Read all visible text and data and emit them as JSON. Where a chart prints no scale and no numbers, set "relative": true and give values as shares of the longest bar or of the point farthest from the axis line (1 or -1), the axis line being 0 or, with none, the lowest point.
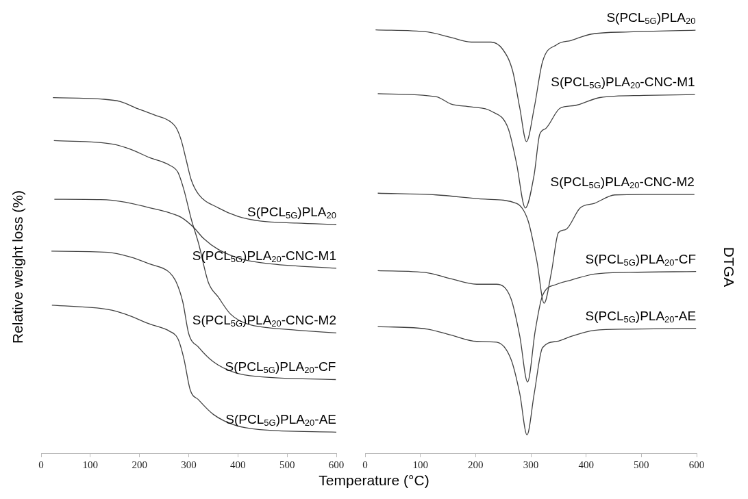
{
  "chart_data": [
    {
      "type": "line",
      "relative": true,
      "ylabel": "Relative weight loss (%)",
      "xlabel": "Temperature (°C)",
      "xlim": [
        0,
        600
      ],
      "xticks": [
        0,
        100,
        200,
        300,
        400,
        500,
        600
      ],
      "grid": false,
      "legend": false,
      "series": [
        {
          "name": "S(PCL$_{5G}$)PLA$_{20}$",
          "color": "#404040",
          "x": [
            24,
            121,
            161,
            196,
            231,
            261,
            275,
            285,
            295,
            305,
            320,
            360,
            400,
            445,
            519,
            600
          ],
          "values": [
            1.0,
            0.996,
            0.989,
            0.969,
            0.951,
            0.934,
            0.914,
            0.879,
            0.824,
            0.769,
            0.728,
            0.69,
            0.666,
            0.653,
            0.647,
            0.643
          ]
        },
        {
          "name": "S(PCL$_{5G}$)PLA$_{20}$-CNC-M1",
          "color": "#404040",
          "x": [
            27,
            121,
            171,
            221,
            261,
            285,
            310,
            330,
            360,
            410,
            469,
            600
          ],
          "values": [
            0.714,
            0.713,
            0.706,
            0.69,
            0.676,
            0.663,
            0.635,
            0.604,
            0.573,
            0.545,
            0.532,
            0.52
          ]
        },
        {
          "name": "S(PCL$_{5G}$)PLA$_{20}$-CNC-M2",
          "color": "#404040",
          "x": [
            26,
            146,
            181,
            221,
            261,
            278,
            290,
            305,
            320,
            340,
            360,
            385,
            420,
            460,
            519,
            600
          ],
          "values": [
            0.879,
            0.869,
            0.855,
            0.831,
            0.81,
            0.79,
            0.742,
            0.659,
            0.59,
            0.48,
            0.439,
            0.391,
            0.363,
            0.353,
            0.346,
            0.338
          ]
        },
        {
          "name": "S(PCL$_{5G}$)PLA$_{20}$-CF",
          "color": "#404040",
          "x": [
            21,
            136,
            181,
            221,
            261,
            275,
            288,
            300,
            320,
            350,
            395,
            445,
            599
          ],
          "values": [
            0.568,
            0.565,
            0.552,
            0.532,
            0.508,
            0.48,
            0.425,
            0.336,
            0.298,
            0.257,
            0.226,
            0.215,
            0.207
          ]
        },
        {
          "name": "S(PCL$_{5G}$)PLA$_{20}$-AE",
          "color": "#404040",
          "x": [
            22,
            136,
            171,
            221,
            261,
            278,
            290,
            303,
            320,
            350,
            395,
            445,
            600
          ],
          "values": [
            0.416,
            0.404,
            0.391,
            0.363,
            0.343,
            0.322,
            0.267,
            0.178,
            0.15,
            0.109,
            0.078,
            0.066,
            0.059
          ]
        }
      ]
    },
    {
      "type": "line",
      "relative": true,
      "ylabel": "DTGA",
      "xlim": [
        0,
        600
      ],
      "xticks": [
        0,
        100,
        200,
        300,
        400,
        500,
        600
      ],
      "grid": false,
      "legend": false,
      "series": [
        {
          "name": "S(PCL$_{5G}$)PLA$_{20}$",
          "color": "#404040",
          "x": [
            19,
            113,
            155,
            192,
            228,
            249,
            267,
            280,
            292,
            306,
            321,
            347,
            373,
            410,
            478,
            598
          ],
          "values": [
            1.0,
            0.995,
            0.982,
            0.971,
            0.971,
            0.954,
            0.903,
            0.815,
            0.736,
            0.815,
            0.924,
            0.965,
            0.975,
            0.99,
            0.995,
            0.999
          ]
        },
        {
          "name": "S(PCL$_{5G}$)PLA$_{20}$-CNC-M1",
          "color": "#404040",
          "x": [
            23,
            129,
            155,
            192,
            228,
            259,
            274,
            290,
            306,
            316,
            327,
            353,
            379,
            425,
            504,
            597
          ],
          "values": [
            0.849,
            0.842,
            0.825,
            0.818,
            0.808,
            0.767,
            0.685,
            0.579,
            0.658,
            0.753,
            0.767,
            0.815,
            0.821,
            0.84,
            0.845,
            0.847
          ]
        },
        {
          "name": "S(PCL$_{5G}$)PLA$_{20}$-CNC-M2",
          "color": "#404040",
          "x": [
            23,
            129,
            217,
            274,
            295,
            311,
            324,
            337,
            350,
            363,
            389,
            415,
            452,
            504,
            596
          ],
          "values": [
            0.614,
            0.61,
            0.6,
            0.59,
            0.549,
            0.453,
            0.354,
            0.426,
            0.521,
            0.528,
            0.579,
            0.59,
            0.61,
            0.611,
            0.611
          ]
        },
        {
          "name": "S(PCL$_{5G}$)PLA$_{20}$-CF",
          "color": "#404040",
          "x": [
            23,
            113,
            155,
            202,
            238,
            264,
            280,
            294,
            308,
            321,
            347,
            373,
            415,
            478,
            599
          ],
          "values": [
            0.431,
            0.426,
            0.412,
            0.399,
            0.399,
            0.365,
            0.276,
            0.168,
            0.29,
            0.372,
            0.399,
            0.409,
            0.423,
            0.427,
            0.429
          ]
        },
        {
          "name": "S(PCL$_{5G}$)PLA$_{20}$-AE",
          "color": "#404040",
          "x": [
            23,
            113,
            155,
            202,
            238,
            264,
            280,
            293,
            306,
            321,
            347,
            373,
            415,
            478,
            599
          ],
          "values": [
            0.299,
            0.293,
            0.279,
            0.264,
            0.262,
            0.222,
            0.14,
            0.043,
            0.14,
            0.249,
            0.264,
            0.276,
            0.29,
            0.293,
            0.295
          ]
        }
      ]
    }
  ]
}
